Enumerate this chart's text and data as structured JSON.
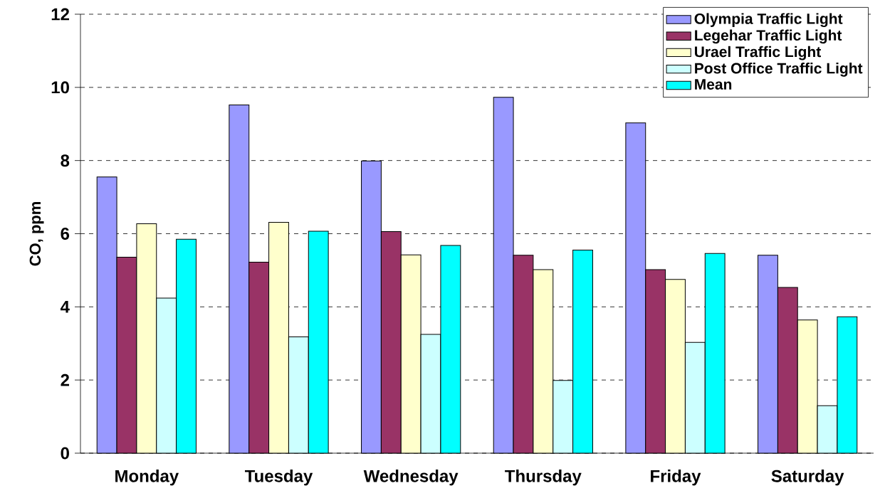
{
  "chart_data": {
    "type": "bar",
    "ylabel": "CO, ppm",
    "categories": [
      "Monday",
      "Tuesday",
      "Wednesday",
      "Thursday",
      "Friday",
      "Saturday"
    ],
    "series": [
      {
        "name": "Olympia Traffic Light",
        "color": "#9999ff",
        "values": [
          7.55,
          9.52,
          7.99,
          9.73,
          9.03,
          5.41
        ]
      },
      {
        "name": "Legehar Traffic Light",
        "color": "#993366",
        "values": [
          5.36,
          5.22,
          6.06,
          5.41,
          5.02,
          4.53
        ]
      },
      {
        "name": "Urael Traffic Light",
        "color": "#ffffcc",
        "values": [
          6.27,
          6.31,
          5.42,
          5.02,
          4.75,
          3.64
        ]
      },
      {
        "name": "Post Office Traffic Light",
        "color": "#ccffff",
        "values": [
          4.24,
          3.18,
          3.25,
          1.99,
          3.03,
          1.3
        ]
      },
      {
        "name": "Mean",
        "color": "#00ffff",
        "values": [
          5.85,
          6.07,
          5.68,
          5.55,
          5.46,
          3.73
        ]
      }
    ],
    "ylim": [
      0,
      12
    ],
    "yticks": [
      0,
      2,
      4,
      6,
      8,
      10,
      12
    ],
    "grid": "y",
    "legend": "top right"
  }
}
